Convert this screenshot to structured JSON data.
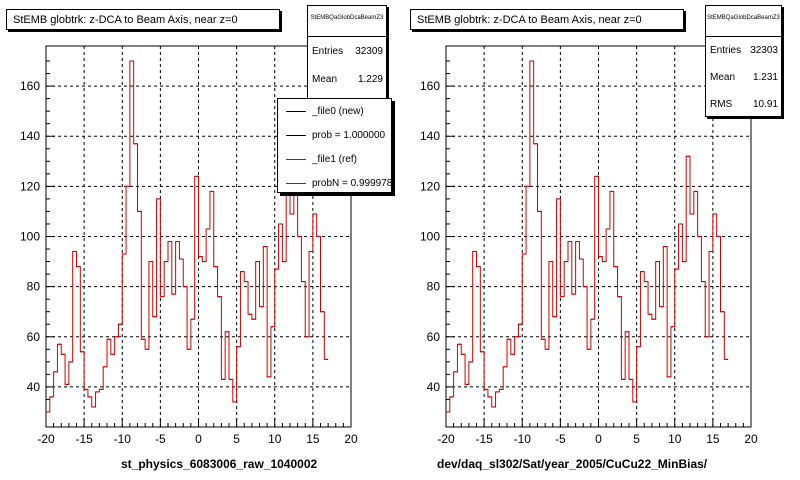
{
  "chart_data": [
    {
      "type": "histogram",
      "title": "StEMB globtrk: z-DCA to Beam Axis, near z=0",
      "xlabel": "st_physics_6083006_raw_1040002",
      "xlim": [
        -20,
        20
      ],
      "ylim": [
        24,
        176
      ],
      "x_ticks": [
        "-20",
        "-15",
        "-10",
        "-5",
        "0",
        "5",
        "10",
        "15",
        "20"
      ],
      "y_ticks": [
        "40",
        "60",
        "80",
        "100",
        "120",
        "140",
        "160"
      ],
      "grid": true,
      "bin_width": 0.5,
      "series": [
        {
          "name": "_file1 (ref)",
          "color": "#cc0000",
          "values": [
            30,
            36,
            46,
            57,
            53,
            41,
            50,
            94,
            88,
            54,
            39,
            36,
            32,
            38,
            39,
            48,
            59,
            53,
            60,
            65,
            93,
            120,
            170,
            137,
            110,
            59,
            55,
            90,
            68,
            115,
            76,
            90,
            98,
            77,
            98,
            91,
            80,
            55,
            67,
            124,
            92,
            90,
            103,
            118,
            88,
            76,
            43,
            62,
            43,
            34,
            56,
            86,
            82,
            69,
            67,
            90,
            72,
            96,
            44,
            64,
            87,
            105,
            90,
            132,
            109,
            118,
            100,
            82,
            60,
            94,
            109,
            100,
            70,
            51
          ]
        }
      ],
      "stats": {
        "name": "StEMBQaGlobDcaBeamZ3",
        "entries_label": "Entries",
        "entries": "32309",
        "mean_label": "Mean",
        "mean": "1.229"
      },
      "legend": [
        {
          "label": "_file0 (new)",
          "color": "#000000"
        },
        {
          "label": "prob = 1.000000",
          "color": "#000000"
        },
        {
          "label": "_file1 (ref)",
          "color": "#cc0000"
        },
        {
          "label": "probN = 0.999978",
          "color": "#cc0000"
        }
      ]
    },
    {
      "type": "histogram",
      "title": "StEMB globtrk: z-DCA to Beam Axis, near z=0",
      "xlabel": "dev/daq_sl302/Sat/year_2005/CuCu22_MinBias/",
      "xlim": [
        -20,
        20
      ],
      "ylim": [
        24,
        176
      ],
      "x_ticks": [
        "-20",
        "-15",
        "-10",
        "-5",
        "0",
        "5",
        "10",
        "15",
        "20"
      ],
      "y_ticks": [
        "40",
        "60",
        "80",
        "100",
        "120",
        "140",
        "160"
      ],
      "grid": true,
      "bin_width": 0.5,
      "series": [
        {
          "name": "",
          "color": "#cc0000",
          "values": [
            30,
            36,
            46,
            57,
            53,
            41,
            50,
            94,
            88,
            54,
            39,
            36,
            32,
            38,
            39,
            48,
            59,
            53,
            60,
            65,
            93,
            120,
            170,
            137,
            110,
            59,
            55,
            90,
            68,
            115,
            76,
            90,
            98,
            77,
            98,
            91,
            80,
            55,
            67,
            124,
            92,
            90,
            103,
            118,
            88,
            76,
            43,
            62,
            43,
            34,
            56,
            86,
            82,
            69,
            67,
            90,
            72,
            96,
            44,
            64,
            87,
            105,
            90,
            132,
            109,
            118,
            100,
            82,
            60,
            94,
            109,
            100,
            70,
            51
          ]
        }
      ],
      "stats": {
        "name": "StEMBQaGlobDcaBeamZ3",
        "entries_label": "Entries",
        "entries": "32303",
        "mean_label": "Mean",
        "mean": "1.231",
        "rms_label": "RMS",
        "rms": "10.91"
      }
    }
  ]
}
